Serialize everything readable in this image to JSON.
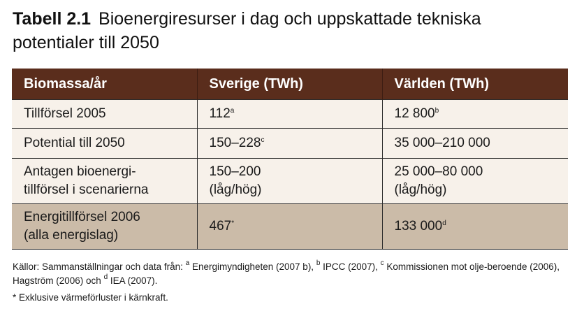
{
  "title": {
    "number": "Tabell 2.1",
    "text": "Bioenergiresurser i dag och uppskattade tekniska potentialer till  2050"
  },
  "table": {
    "headers": [
      "Biomassa/år",
      "Sverige (TWh)",
      "Världen (TWh)"
    ],
    "rows": [
      {
        "label": "Tillförsel 2005",
        "sverige": "112",
        "sverige_note": "a",
        "varlden": "12 800",
        "varlden_note": "b"
      },
      {
        "label": "Potential till 2050",
        "sverige": "150–228",
        "sverige_note": "c",
        "varlden": "35 000–210 000",
        "varlden_note": ""
      },
      {
        "label_line1": "Antagen bioenergi-",
        "label_line2": "tillförsel i scenarierna",
        "sverige_line1": "150–200",
        "sverige_line2": "(låg/hög)",
        "varlden_line1": "25 000–80 000",
        "varlden_line2": "(låg/hög)"
      },
      {
        "label_line1": "Energitillförsel 2006",
        "label_line2": "(alla energislag)",
        "sverige": "467",
        "sverige_note": "*",
        "varlden": "133 000",
        "varlden_note": "d"
      }
    ]
  },
  "sources": {
    "prefix": "Källor: Sammanställningar och data från: ",
    "a_mark": "a",
    "a_text": " Energimyndigheten (2007 b),  ",
    "b_mark": "b",
    "b_text": " IPCC (2007),  ",
    "c_mark": "c",
    "c_text": " Kommissionen mot olje-beroende (2006), Hagström (2006) och ",
    "d_mark": "d",
    "d_text": " IEA (2007)."
  },
  "footnote": "* Exklusive värmeförluster i kärnkraft.",
  "colors": {
    "header_bg": "#5a2d1c",
    "row_bg": "#f7f1ea",
    "highlight_row_bg": "#cbbba8"
  }
}
